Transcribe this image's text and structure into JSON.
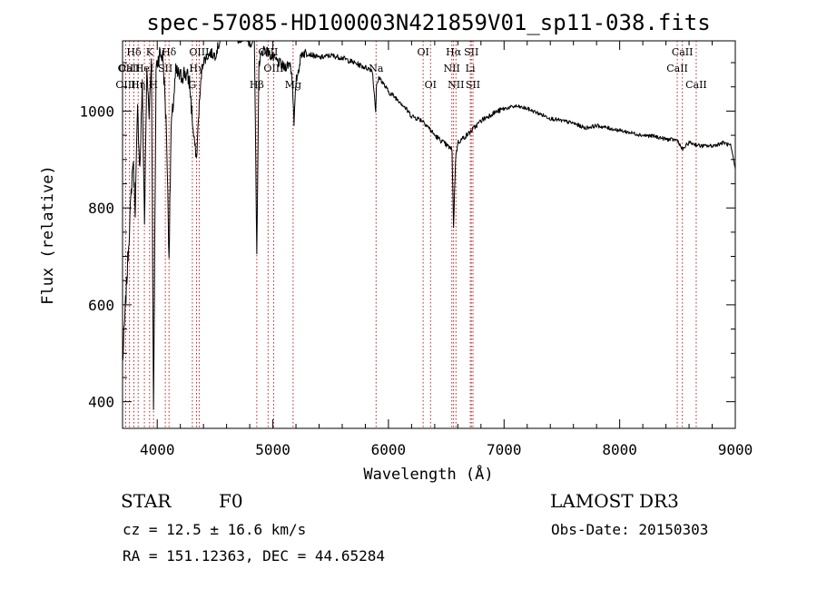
{
  "chart_data": {
    "type": "line",
    "title": "spec-57085-HD100003N421859V01_sp11-038.fits",
    "xlabel": "Wavelength (Å)",
    "ylabel": "Flux (relative)",
    "xlim": [
      3700,
      9000
    ],
    "ylim": [
      345,
      1145
    ],
    "xticks": [
      4000,
      5000,
      6000,
      7000,
      8000,
      9000
    ],
    "yticks": [
      400,
      600,
      800,
      1000
    ],
    "grid": false,
    "series": [
      {
        "name": "spectrum",
        "x": [
          3700,
          3730,
          3760,
          3790,
          3810,
          3830,
          3850,
          3870,
          3890,
          3910,
          3930,
          3950,
          3968,
          3990,
          4020,
          4050,
          4080,
          4102,
          4120,
          4160,
          4200,
          4240,
          4280,
          4310,
          4340,
          4360,
          4390,
          4420,
          4460,
          4500,
          4550,
          4600,
          4650,
          4700,
          4750,
          4800,
          4840,
          4861,
          4880,
          4920,
          4960,
          5000,
          5050,
          5100,
          5150,
          5170,
          5183,
          5200,
          5250,
          5300,
          5400,
          5500,
          5600,
          5700,
          5800,
          5860,
          5890,
          5896,
          5920,
          6000,
          6100,
          6200,
          6300,
          6400,
          6500,
          6550,
          6563,
          6580,
          6600,
          6650,
          6700,
          6800,
          6900,
          7000,
          7100,
          7200,
          7300,
          7400,
          7500,
          7600,
          7700,
          7800,
          7900,
          8000,
          8100,
          8200,
          8300,
          8400,
          8500,
          8542,
          8600,
          8700,
          8800,
          8900,
          8960,
          9000
        ],
        "values": [
          480,
          620,
          760,
          900,
          800,
          1000,
          880,
          1050,
          770,
          1080,
          1000,
          1110,
          370,
          1090,
          1120,
          1110,
          960,
          700,
          960,
          1080,
          1070,
          1080,
          1060,
          960,
          900,
          1000,
          1100,
          1110,
          1120,
          1115,
          1150,
          1160,
          1150,
          1150,
          1155,
          1140,
          1150,
          700,
          1100,
          1130,
          1120,
          1110,
          1100,
          1090,
          1100,
          1060,
          970,
          1060,
          1120,
          1120,
          1110,
          1115,
          1110,
          1100,
          1090,
          1085,
          1000,
          1050,
          1070,
          1040,
          1020,
          990,
          980,
          950,
          930,
          920,
          760,
          900,
          935,
          945,
          955,
          980,
          995,
          1005,
          1010,
          1005,
          995,
          985,
          980,
          975,
          965,
          970,
          965,
          960,
          955,
          950,
          948,
          942,
          940,
          920,
          935,
          928,
          928,
          935,
          928,
          880
        ]
      }
    ],
    "line_markers": [
      {
        "name": "Hδ",
        "wavelength": 3798,
        "row": 1
      },
      {
        "name": "OII",
        "wavelength": 3727,
        "row": 2
      },
      {
        "name": "OIII",
        "wavelength": 3727,
        "row": 3
      },
      {
        "name": "CaII",
        "wavelength": 3760,
        "row": 2
      },
      {
        "name": "K",
        "wavelength": 3934,
        "row": 1
      },
      {
        "name": "HeI",
        "wavelength": 3889,
        "row": 2
      },
      {
        "name": "SII",
        "wavelength": 4070,
        "row": 2
      },
      {
        "name": "Hη",
        "wavelength": 3835,
        "row": 3
      },
      {
        "name": "H",
        "wavelength": 3968,
        "row": 3
      },
      {
        "name": "Hδ",
        "wavelength": 4102,
        "row": 1
      },
      {
        "name": "OIII",
        "wavelength": 4363,
        "row": 1
      },
      {
        "name": "Hγ",
        "wavelength": 4340,
        "row": 2
      },
      {
        "name": "G",
        "wavelength": 4304,
        "row": 3
      },
      {
        "name": "OIII",
        "wavelength": 4959,
        "row": 1
      },
      {
        "name": "OIII",
        "wavelength": 5007,
        "row": 2
      },
      {
        "name": "Hβ",
        "wavelength": 4861,
        "row": 3
      },
      {
        "name": "Mg",
        "wavelength": 5175,
        "row": 3
      },
      {
        "name": "Na",
        "wavelength": 5893,
        "row": 2
      },
      {
        "name": "OI",
        "wavelength": 6300,
        "row": 1
      },
      {
        "name": "OI",
        "wavelength": 6364,
        "row": 3
      },
      {
        "name": "Hα",
        "wavelength": 6563,
        "row": 1
      },
      {
        "name": "NII",
        "wavelength": 6548,
        "row": 2
      },
      {
        "name": "NII",
        "wavelength": 6584,
        "row": 3
      },
      {
        "name": "SII",
        "wavelength": 6717,
        "row": 1
      },
      {
        "name": "Li",
        "wavelength": 6708,
        "row": 2
      },
      {
        "name": "SII",
        "wavelength": 6731,
        "row": 3
      },
      {
        "name": "CaII",
        "wavelength": 8542,
        "row": 1
      },
      {
        "name": "CaII",
        "wavelength": 8498,
        "row": 2
      },
      {
        "name": "CaII",
        "wavelength": 8662,
        "row": 3
      }
    ]
  },
  "info": {
    "object_class": "STAR",
    "subclass": "F0",
    "survey": "LAMOST DR3",
    "cz": "cz = 12.5 ± 16.6 km/s",
    "obs_date": "Obs-Date: 20150303",
    "coords": "RA = 151.12363, DEC =  44.65284"
  }
}
